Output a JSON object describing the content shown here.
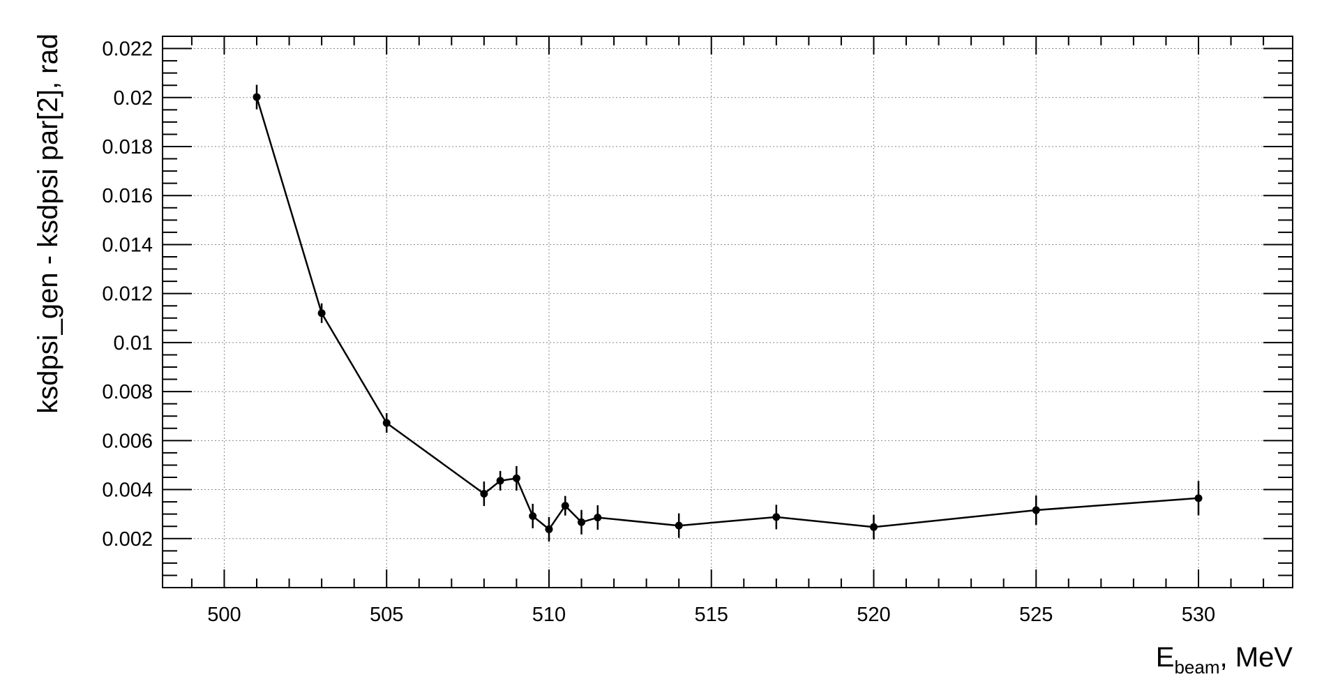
{
  "chart_data": {
    "type": "scatter",
    "xlabel_main": "E",
    "xlabel_sub": "beam",
    "xlabel_suffix": ", MeV",
    "ylabel": "ksdpsi_gen - ksdpsi par[2], rad",
    "xlim": [
      498.1,
      532.9
    ],
    "ylim": [
      0.0,
      0.0225
    ],
    "x_ticks": [
      "500",
      "505",
      "510",
      "515",
      "520",
      "525",
      "530"
    ],
    "y_ticks": [
      "0.002",
      "0.004",
      "0.006",
      "0.008",
      "0.01",
      "0.012",
      "0.014",
      "0.016",
      "0.018",
      "0.02",
      "0.022"
    ],
    "grid": true,
    "series": [
      {
        "points": [
          {
            "x": 501.0,
            "y": 0.02002,
            "err": 0.0005
          },
          {
            "x": 503.0,
            "y": 0.0112,
            "err": 0.0004
          },
          {
            "x": 505.0,
            "y": 0.00672,
            "err": 0.0004
          },
          {
            "x": 508.0,
            "y": 0.00383,
            "err": 0.0005
          },
          {
            "x": 508.5,
            "y": 0.00436,
            "err": 0.0004
          },
          {
            "x": 509.0,
            "y": 0.00446,
            "err": 0.0005
          },
          {
            "x": 509.5,
            "y": 0.00292,
            "err": 0.0005
          },
          {
            "x": 510.0,
            "y": 0.00238,
            "err": 0.0005
          },
          {
            "x": 510.5,
            "y": 0.00334,
            "err": 0.0004
          },
          {
            "x": 511.0,
            "y": 0.00267,
            "err": 0.0005
          },
          {
            "x": 511.5,
            "y": 0.00286,
            "err": 0.0005
          },
          {
            "x": 514.0,
            "y": 0.00253,
            "err": 0.0005
          },
          {
            "x": 517.0,
            "y": 0.00288,
            "err": 0.0005
          },
          {
            "x": 520.0,
            "y": 0.00247,
            "err": 0.0005
          },
          {
            "x": 525.0,
            "y": 0.00316,
            "err": 0.0006
          },
          {
            "x": 530.0,
            "y": 0.00365,
            "err": 0.0007
          }
        ]
      }
    ]
  }
}
